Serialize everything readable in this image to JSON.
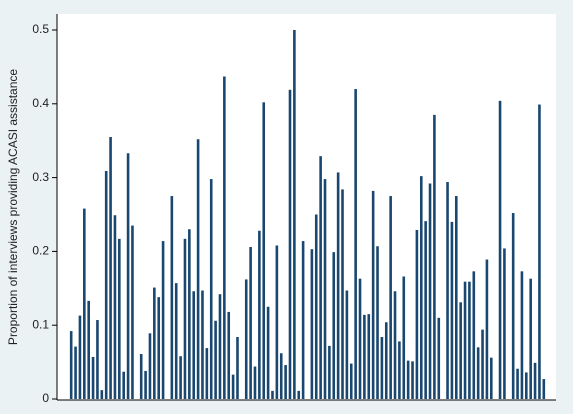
{
  "chart_data": {
    "type": "bar",
    "y_label": "Proportion of interviews providing ACASI assistance",
    "categories": [
      null,
      null,
      null,
      null,
      null,
      null,
      null,
      null,
      null,
      null,
      null,
      null,
      null,
      null,
      null,
      null,
      null,
      null,
      null,
      null,
      null,
      null,
      null,
      null,
      null,
      null,
      null,
      null,
      null,
      null,
      null,
      null,
      null,
      null,
      null,
      null,
      null,
      null,
      null,
      null,
      null,
      null,
      null,
      null,
      null,
      null,
      null,
      null,
      null,
      null,
      null,
      null,
      null,
      null,
      null,
      null,
      null,
      null,
      null,
      null,
      null,
      null,
      null,
      null,
      null,
      null,
      null,
      null,
      null,
      null,
      null,
      null,
      null,
      null,
      null,
      null,
      null,
      null,
      null,
      null,
      null,
      null,
      null,
      null,
      null,
      null,
      null,
      null,
      null,
      null,
      null,
      null,
      null,
      null,
      null,
      null,
      null,
      null,
      null,
      null,
      null,
      null,
      null,
      null,
      null,
      null,
      null,
      null,
      null
    ],
    "values": [
      0.092,
      0.071,
      0.113,
      0.258,
      0.133,
      0.057,
      0.107,
      0.012,
      0.309,
      0.355,
      0.249,
      0.217,
      0.037,
      0.333,
      0.235,
      null,
      0.061,
      0.038,
      0.089,
      0.151,
      0.138,
      0.214,
      null,
      0.275,
      0.157,
      0.058,
      0.217,
      0.23,
      0.146,
      0.352,
      0.147,
      0.069,
      0.298,
      0.106,
      0.142,
      0.437,
      0.118,
      0.033,
      0.084,
      null,
      0.162,
      0.206,
      0.044,
      0.228,
      0.402,
      0.125,
      0.011,
      0.208,
      0.062,
      0.046,
      0.419,
      0.5,
      0.011,
      0.214,
      null,
      0.203,
      0.25,
      0.329,
      0.298,
      0.072,
      0.199,
      0.307,
      0.284,
      0.147,
      0.048,
      0.42,
      0.163,
      0.114,
      0.115,
      0.282,
      0.207,
      0.084,
      0.104,
      0.275,
      0.146,
      0.078,
      0.166,
      0.052,
      0.051,
      0.229,
      0.302,
      0.241,
      0.292,
      0.385,
      0.11,
      null,
      0.294,
      0.24,
      0.275,
      0.131,
      0.159,
      0.159,
      0.173,
      0.07,
      0.094,
      0.189,
      0.056,
      null,
      0.404,
      0.204,
      null,
      0.252,
      0.041,
      0.173,
      0.036,
      0.163,
      0.049,
      0.399,
      0.027
    ],
    "color": "#1a476f",
    "ylim": [
      0,
      0.5
    ],
    "yticks": [
      0,
      0.1,
      0.2,
      0.3,
      0.4,
      0.5
    ],
    "grid": false
  }
}
